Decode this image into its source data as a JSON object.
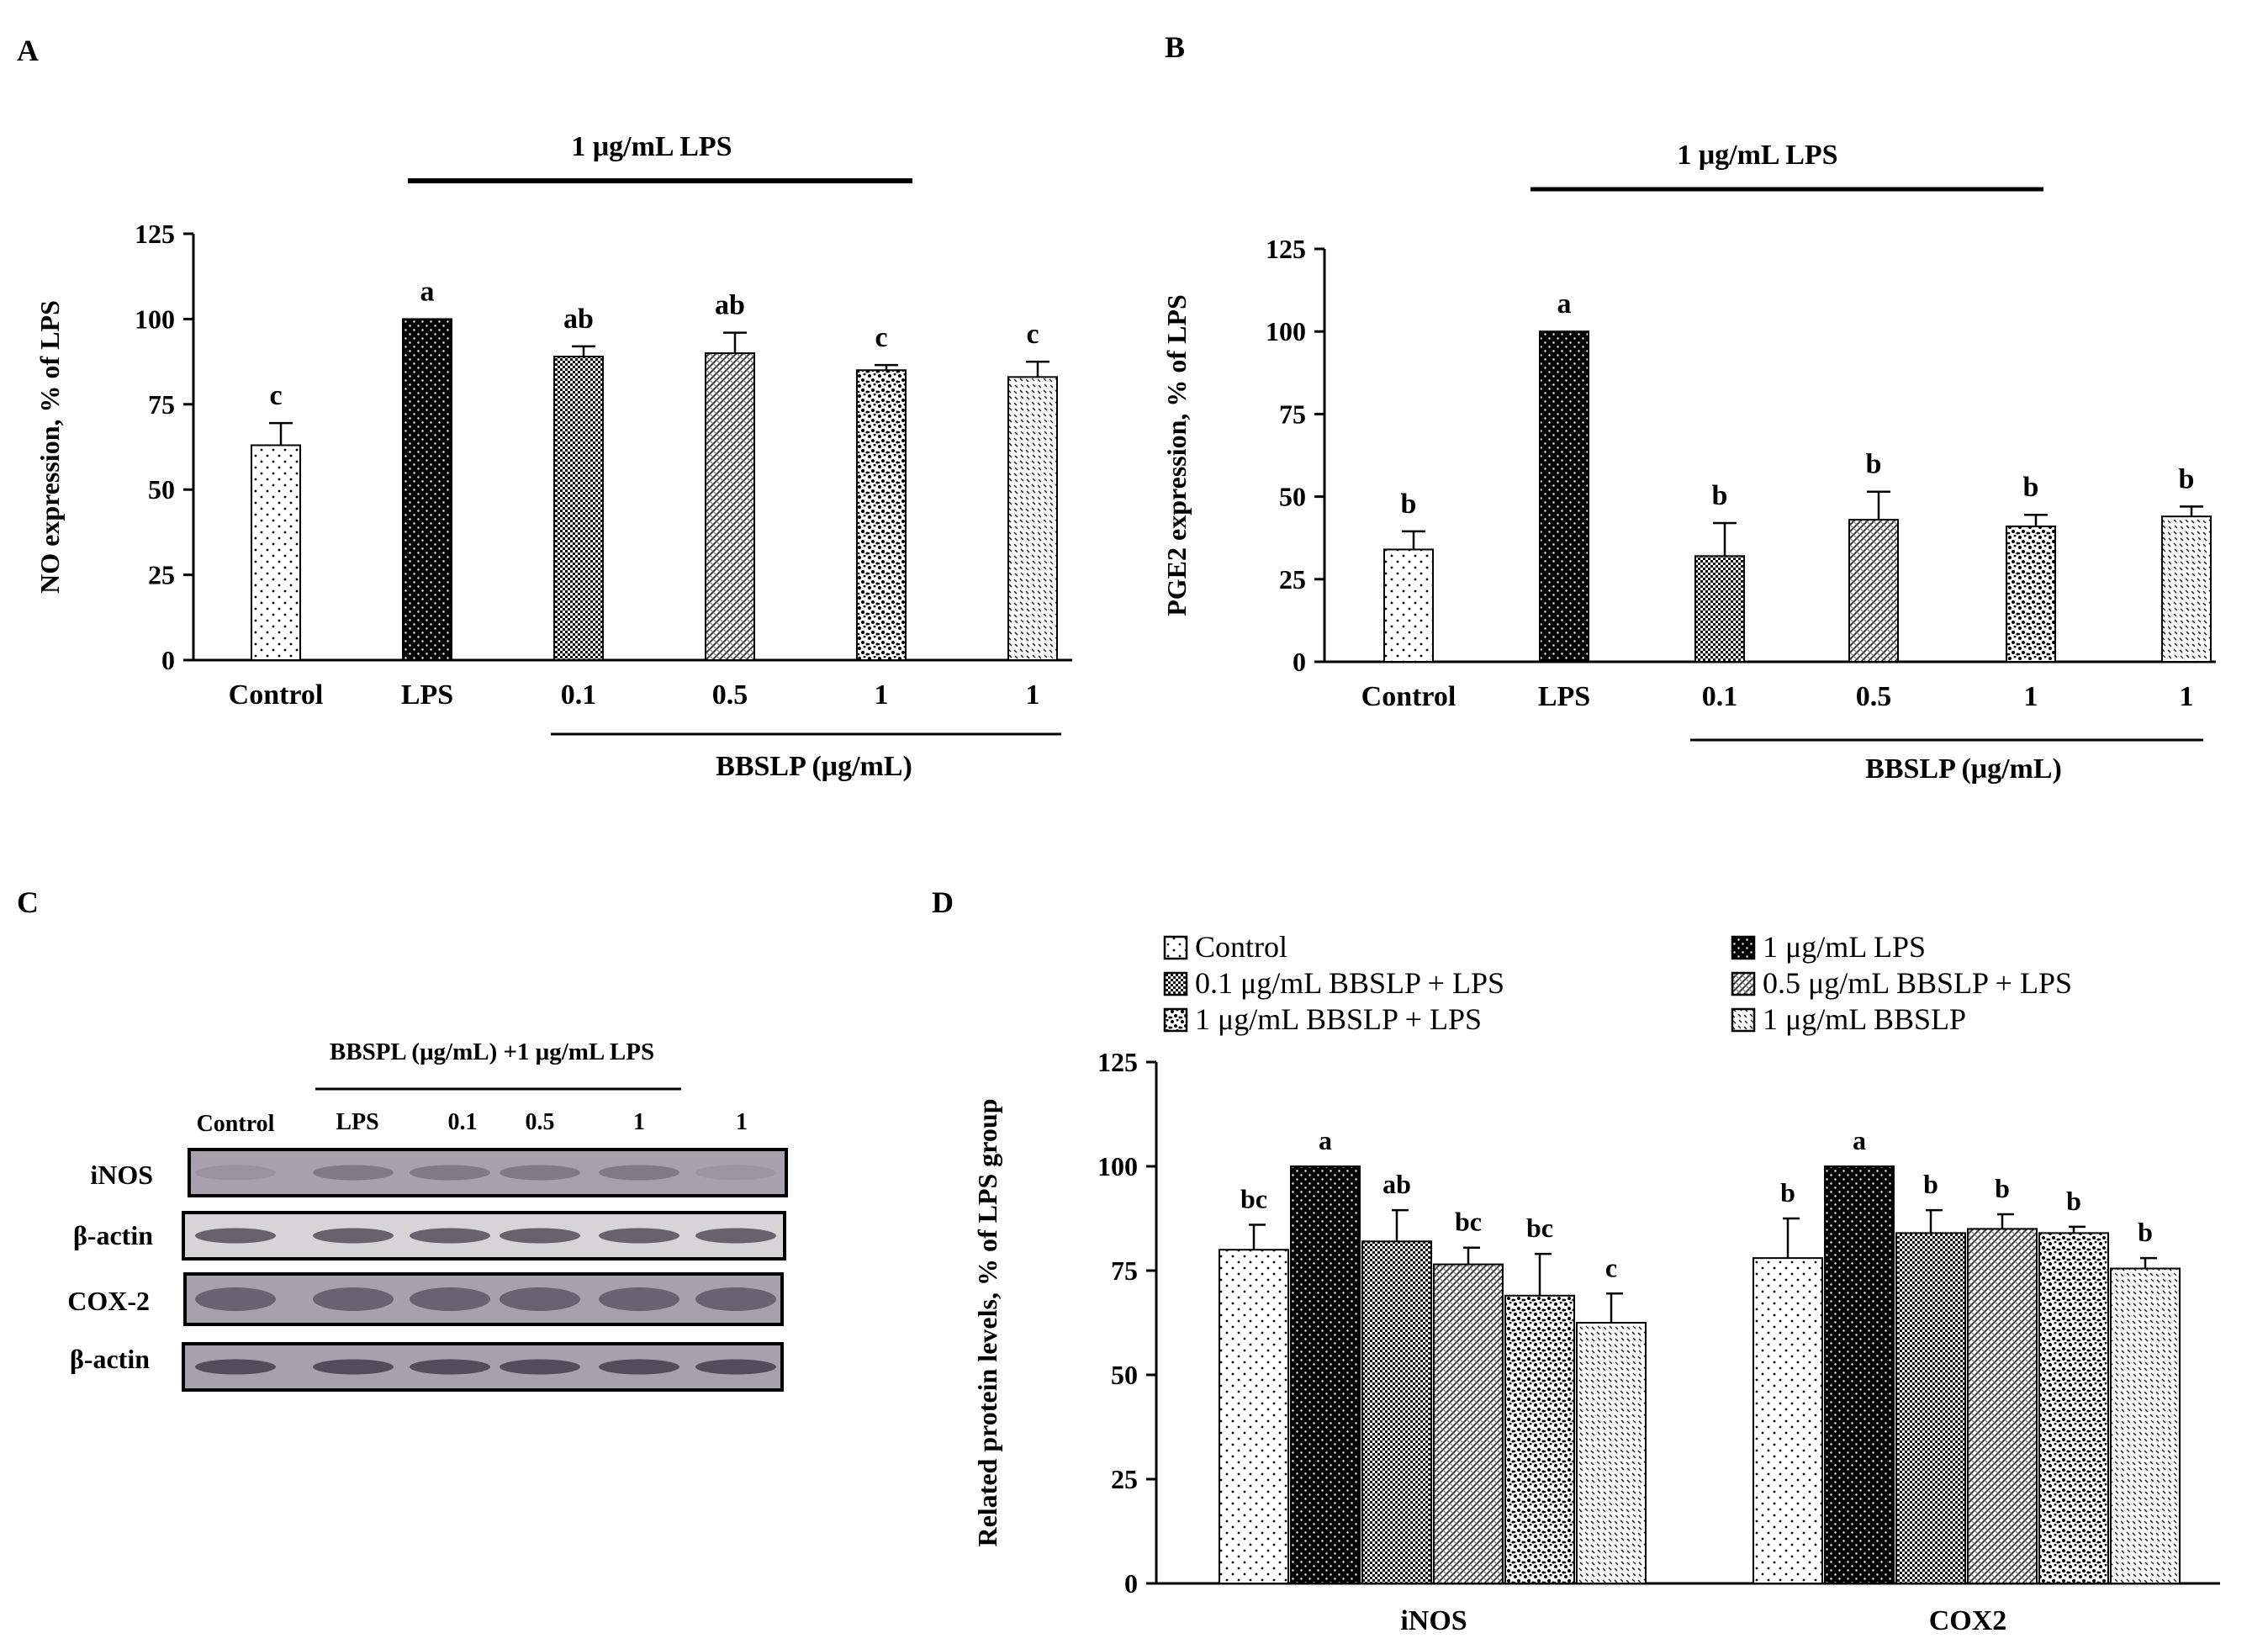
{
  "panels": {
    "A": {
      "letter": "A",
      "treatment_label": "1 μg/mL LPS",
      "group_label": "BBSLP (μg/mL)"
    },
    "B": {
      "letter": "B",
      "treatment_label": "1 μg/mL LPS",
      "group_label": "BBSLP  (μg/mL)"
    },
    "C": {
      "letter": "C",
      "header": "BBSPL (μg/mL) +1 μg/mL LPS",
      "lane_labels": [
        "Control",
        "LPS",
        "0.1",
        "0.5",
        "1",
        "1"
      ],
      "rows": [
        "iNOS",
        "β-actin",
        "COX-2",
        "β-actin"
      ]
    },
    "D": {
      "letter": "D"
    }
  },
  "chart_data": [
    {
      "panel": "A",
      "type": "bar",
      "categories": [
        "Control",
        "LPS",
        "0.1",
        "0.5",
        "1",
        "1"
      ],
      "values": [
        63,
        100,
        89,
        90,
        85,
        83
      ],
      "errors": [
        6.5,
        0,
        3,
        6,
        1.5,
        4.5
      ],
      "significance": [
        "c",
        "a",
        "ab",
        "ab",
        "c",
        "c"
      ],
      "title": "",
      "xlabel": "BBSLP (μg/mL)",
      "ylabel": "NO expression, % of LPS",
      "ylim": [
        0,
        125
      ],
      "yticks": [
        "0",
        "25",
        "50",
        "75",
        "100",
        "125"
      ]
    },
    {
      "panel": "B",
      "type": "bar",
      "categories": [
        "Control",
        "LPS",
        "0.1",
        "0.5",
        "1",
        "1"
      ],
      "values": [
        34,
        100,
        32,
        43,
        41,
        44
      ],
      "errors": [
        5.5,
        0,
        10,
        8.5,
        3.5,
        3
      ],
      "significance": [
        "b",
        "a",
        "b",
        "b",
        "b",
        "b"
      ],
      "title": "",
      "xlabel": "BBSLP  (μg/mL)",
      "ylabel": "PGE2 expression, % of LPS",
      "ylim": [
        0,
        125
      ],
      "yticks": [
        "0",
        "25",
        "50",
        "75",
        "100",
        "125"
      ]
    },
    {
      "panel": "D",
      "type": "bar",
      "categories": [
        "iNOS",
        "COX2"
      ],
      "series": [
        {
          "name": "Control",
          "values": [
            80,
            78
          ],
          "errors": [
            6,
            9.5
          ],
          "significance": [
            "bc",
            "b"
          ]
        },
        {
          "name": "1 μg/mL LPS",
          "values": [
            100,
            100
          ],
          "errors": [
            0,
            0
          ],
          "significance": [
            "a",
            "a"
          ]
        },
        {
          "name": "0.1 μg/mL BBSLP + LPS",
          "values": [
            82,
            84
          ],
          "errors": [
            7.5,
            5.5
          ],
          "significance": [
            "ab",
            "b"
          ]
        },
        {
          "name": "0.5 μg/mL BBSLP + LPS",
          "values": [
            76.5,
            85
          ],
          "errors": [
            4,
            3.5
          ],
          "significance": [
            "bc",
            "b"
          ]
        },
        {
          "name": "1 μg/mL BBSLP + LPS",
          "values": [
            69,
            84
          ],
          "errors": [
            10,
            1.5
          ],
          "significance": [
            "bc",
            "b"
          ]
        },
        {
          "name": "1 μg/mL  BBSLP",
          "values": [
            62.5,
            75.5
          ],
          "errors": [
            7,
            2.5
          ],
          "significance": [
            "c",
            "b"
          ]
        }
      ],
      "title": "",
      "xlabel": "",
      "ylabel": "Related protein levels, % of LPS group",
      "ylim": [
        0,
        125
      ],
      "yticks": [
        "0",
        "25",
        "50",
        "75",
        "100",
        "125"
      ],
      "legend": "top"
    }
  ]
}
